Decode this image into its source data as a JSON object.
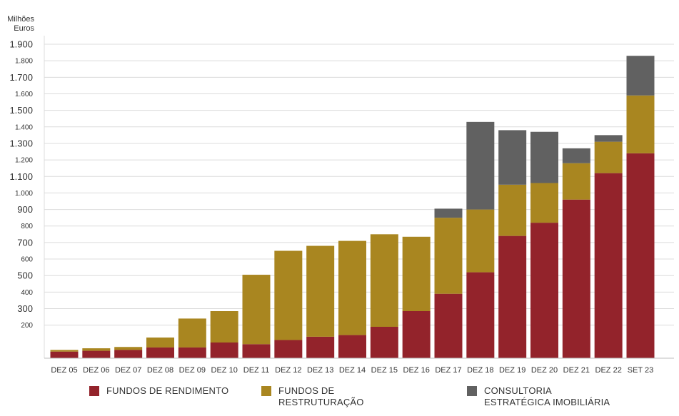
{
  "chart_data": {
    "type": "bar",
    "stacked": true,
    "ylabel": "Milhões\nEuros",
    "ylim": [
      0,
      1900
    ],
    "y_ticks": [
      {
        "value": 200,
        "label": "200",
        "major": false
      },
      {
        "value": 300,
        "label": "300",
        "major": true
      },
      {
        "value": 400,
        "label": "400",
        "major": false
      },
      {
        "value": 500,
        "label": "500",
        "major": true
      },
      {
        "value": 600,
        "label": "600",
        "major": false
      },
      {
        "value": 700,
        "label": "700",
        "major": true
      },
      {
        "value": 800,
        "label": "800",
        "major": false
      },
      {
        "value": 900,
        "label": "900",
        "major": true
      },
      {
        "value": 1000,
        "label": "1.000",
        "major": false
      },
      {
        "value": 1100,
        "label": "1.100",
        "major": true
      },
      {
        "value": 1200,
        "label": "1.200",
        "major": false
      },
      {
        "value": 1300,
        "label": "1.300",
        "major": true
      },
      {
        "value": 1400,
        "label": "1.400",
        "major": false
      },
      {
        "value": 1500,
        "label": "1.500",
        "major": true
      },
      {
        "value": 1600,
        "label": "1.600",
        "major": false
      },
      {
        "value": 1700,
        "label": "1.700",
        "major": true
      },
      {
        "value": 1800,
        "label": "1.800",
        "major": false
      },
      {
        "value": 1900,
        "label": "1.900",
        "major": true
      }
    ],
    "grid": true,
    "legend_position": "bottom",
    "categories": [
      "DEZ 05",
      "DEZ 06",
      "DEZ 07",
      "DEZ 08",
      "DEZ 09",
      "DEZ 10",
      "DEZ 11",
      "DEZ 12",
      "DEZ 13",
      "DEZ 14",
      "DEZ 15",
      "DEZ 16",
      "DEZ 17",
      "DEZ 18",
      "DEZ 19",
      "DEZ 20",
      "DEZ 21",
      "DEZ 22",
      "SET 23"
    ],
    "series": [
      {
        "name": "FUNDOS DE RENDIMENTO",
        "color": "#93232B",
        "values": [
          40,
          45,
          50,
          65,
          65,
          95,
          85,
          110,
          130,
          140,
          190,
          285,
          390,
          520,
          740,
          820,
          960,
          1120,
          1240
        ]
      },
      {
        "name": "FUNDOS DE RESTRUTURAÇÃO",
        "color": "#A98620",
        "values": [
          10,
          15,
          18,
          60,
          175,
          190,
          420,
          540,
          550,
          570,
          560,
          450,
          460,
          380,
          310,
          240,
          220,
          190,
          350
        ]
      },
      {
        "name": "CONSULTORIA ESTRATÉGICA IMOBILIÁRIA",
        "color": "#616161",
        "values": [
          0,
          0,
          0,
          0,
          0,
          0,
          0,
          0,
          0,
          0,
          0,
          0,
          55,
          530,
          330,
          310,
          90,
          40,
          240
        ]
      }
    ]
  }
}
